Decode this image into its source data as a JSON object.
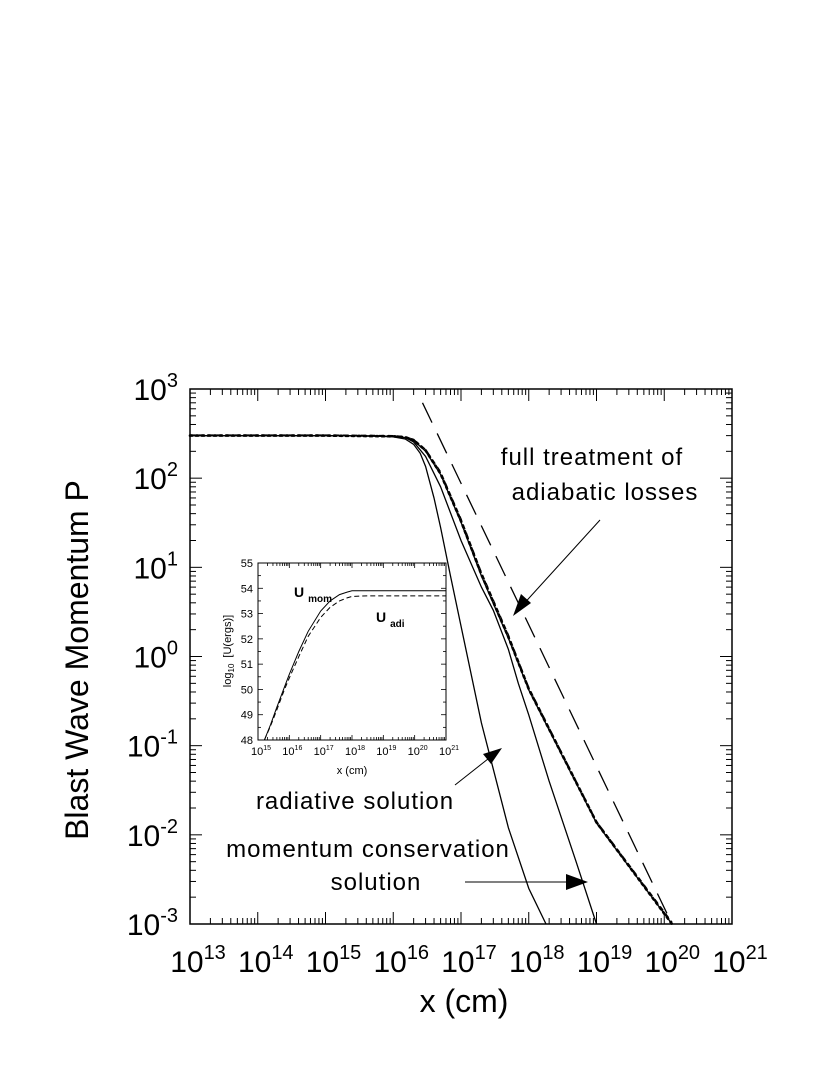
{
  "chart_data": [
    {
      "type": "line",
      "xscale": "log",
      "yscale": "log",
      "xlabel": "x (cm)",
      "ylabel": "Blast Wave Momentum P",
      "xlim": [
        10000000000000.0,
        1e+21
      ],
      "ylim": [
        0.001,
        1000
      ],
      "x_ticks": [
        {
          "value": 10000000000000.0,
          "base": "10",
          "exp": "13"
        },
        {
          "value": 100000000000000.0,
          "base": "10",
          "exp": "14"
        },
        {
          "value": 1000000000000000.0,
          "base": "10",
          "exp": "15"
        },
        {
          "value": 1e+16,
          "base": "10",
          "exp": "16"
        },
        {
          "value": 1e+17,
          "base": "10",
          "exp": "17"
        },
        {
          "value": 1e+18,
          "base": "10",
          "exp": "18"
        },
        {
          "value": 1e+19,
          "base": "10",
          "exp": "19"
        },
        {
          "value": 1e+20,
          "base": "10",
          "exp": "20"
        },
        {
          "value": 1e+21,
          "base": "10",
          "exp": "21"
        }
      ],
      "y_ticks": [
        {
          "value": 0.001,
          "base": "10",
          "exp": "-3"
        },
        {
          "value": 0.01,
          "base": "10",
          "exp": "-2"
        },
        {
          "value": 0.1,
          "base": "10",
          "exp": "-1"
        },
        {
          "value": 1,
          "base": "10",
          "exp": "0"
        },
        {
          "value": 10,
          "base": "10",
          "exp": "1"
        },
        {
          "value": 100,
          "base": "10",
          "exp": "2"
        },
        {
          "value": 1000,
          "base": "10",
          "exp": "3"
        }
      ],
      "annotations": [
        {
          "lines": [
            "full  treatment  of",
            "adiabatic  losses"
          ]
        },
        {
          "lines": [
            "radiative   solution"
          ]
        },
        {
          "lines": [
            "momentum  conservation",
            "solution"
          ]
        }
      ],
      "series": [
        {
          "style": "solid",
          "x": [
            10000000000000.0,
            1000000000000000.0,
            5000000000000000.0,
            1e+16,
            1.5e+16,
            2e+16,
            2.5e+16,
            3e+16,
            4e+16,
            5e+16,
            7e+16,
            1e+17,
            2e+17,
            5e+17,
            1e+18,
            1.8e+18
          ],
          "y": [
            300,
            300,
            298,
            290,
            275,
            240,
            190,
            135,
            60,
            28,
            8,
            2.2,
            0.18,
            0.012,
            0.0025,
            0.001
          ]
        },
        {
          "style": "solid",
          "x": [
            10000000000000.0,
            1000000000000000.0,
            1e+16,
            1.5e+16,
            2e+16,
            3e+16,
            5e+16,
            1e+17,
            2e+17,
            3e+17,
            5e+17,
            7e+17,
            1e+18,
            2e+18,
            5e+18,
            1e+19
          ],
          "y": [
            300,
            300,
            295,
            285,
            255,
            175,
            80,
            20,
            6,
            3.3,
            1.2,
            0.5,
            0.22,
            0.04,
            0.005,
            0.001
          ]
        },
        {
          "style": "solid",
          "x": [
            10000000000000.0,
            1000000000000000.0,
            1e+16,
            1.5e+16,
            2e+16,
            3e+16,
            5e+16,
            1e+17,
            2e+17,
            5e+17,
            1e+18,
            1e+19,
            1.3e+20
          ],
          "y": [
            300,
            300,
            295,
            285,
            265,
            200,
            110,
            32,
            8,
            1.6,
            0.42,
            0.0135,
            0.001
          ]
        },
        {
          "style": "dotted",
          "x": [
            10000000000000.0,
            1000000000000000.0,
            1e+16,
            1.5e+16,
            2e+16,
            3e+16,
            5e+16,
            1e+17,
            2e+17,
            5e+17,
            1e+18,
            1e+19,
            1.3e+20
          ],
          "y": [
            300,
            300,
            295,
            288,
            268,
            205,
            112,
            33,
            8.3,
            1.65,
            0.43,
            0.0138,
            0.001
          ]
        },
        {
          "style": "short-dash",
          "x": [
            10000000000000.0,
            1000000000000000.0,
            1e+16,
            1.5e+16,
            2e+16,
            3e+16,
            5e+16,
            1e+17,
            2e+17,
            5e+17,
            1e+18,
            1e+19,
            1.3e+20
          ],
          "y": [
            305,
            305,
            300,
            292,
            272,
            210,
            118,
            35,
            8.8,
            1.75,
            0.45,
            0.0142,
            0.00105
          ]
        },
        {
          "style": "long-dash",
          "x": [
            2.7e+16,
            1.3e+20
          ],
          "y": [
            700,
            0.001
          ]
        }
      ]
    },
    {
      "type": "line",
      "xscale": "log",
      "xlabel": "x  (cm)",
      "ylabel_main": "[U(ergs)]",
      "ylabel_prefix": "log",
      "ylabel_sub": "10",
      "xlim": [
        1000000000000000.0,
        1e+21
      ],
      "ylim": [
        48,
        55
      ],
      "x_ticks": [
        {
          "value": 1000000000000000.0,
          "base": "10",
          "exp": "15"
        },
        {
          "value": 1e+16,
          "base": "10",
          "exp": "16"
        },
        {
          "value": 1e+17,
          "base": "10",
          "exp": "17"
        },
        {
          "value": 1e+18,
          "base": "10",
          "exp": "18"
        },
        {
          "value": 1e+19,
          "base": "10",
          "exp": "19"
        },
        {
          "value": 1e+20,
          "base": "10",
          "exp": "20"
        },
        {
          "value": 1e+21,
          "base": "10",
          "exp": "21"
        }
      ],
      "y_ticks": [
        "48",
        "49",
        "50",
        "51",
        "52",
        "53",
        "54",
        "55"
      ],
      "labels": [
        {
          "main": "U",
          "sub": "mom"
        },
        {
          "main": "U",
          "sub": "adi"
        }
      ],
      "series": [
        {
          "name": "U_mom",
          "style": "solid",
          "x": [
            1600000000000000.0,
            2500000000000000.0,
            4000000000000000.0,
            7000000000000000.0,
            1e+16,
            2e+16,
            4e+16,
            1e+17,
            2e+17,
            4e+17,
            7e+17,
            1e+18,
            3e+18,
            1e+19,
            1e+20,
            1e+21
          ],
          "y": [
            48.0,
            48.6,
            49.3,
            50.1,
            50.6,
            51.5,
            52.3,
            53.1,
            53.5,
            53.75,
            53.85,
            53.9,
            53.9,
            53.9,
            53.9,
            53.9
          ]
        },
        {
          "name": "U_adi",
          "style": "dashed",
          "x": [
            1600000000000000.0,
            2500000000000000.0,
            4000000000000000.0,
            7000000000000000.0,
            1e+16,
            2e+16,
            4e+16,
            1e+17,
            2e+17,
            4e+17,
            7e+17,
            1e+18,
            3e+18,
            1e+19,
            1e+20,
            1e+21
          ],
          "y": [
            48.0,
            48.55,
            49.2,
            50.0,
            50.45,
            51.3,
            52.1,
            52.85,
            53.25,
            53.5,
            53.62,
            53.68,
            53.7,
            53.7,
            53.7,
            53.7
          ]
        }
      ]
    }
  ]
}
